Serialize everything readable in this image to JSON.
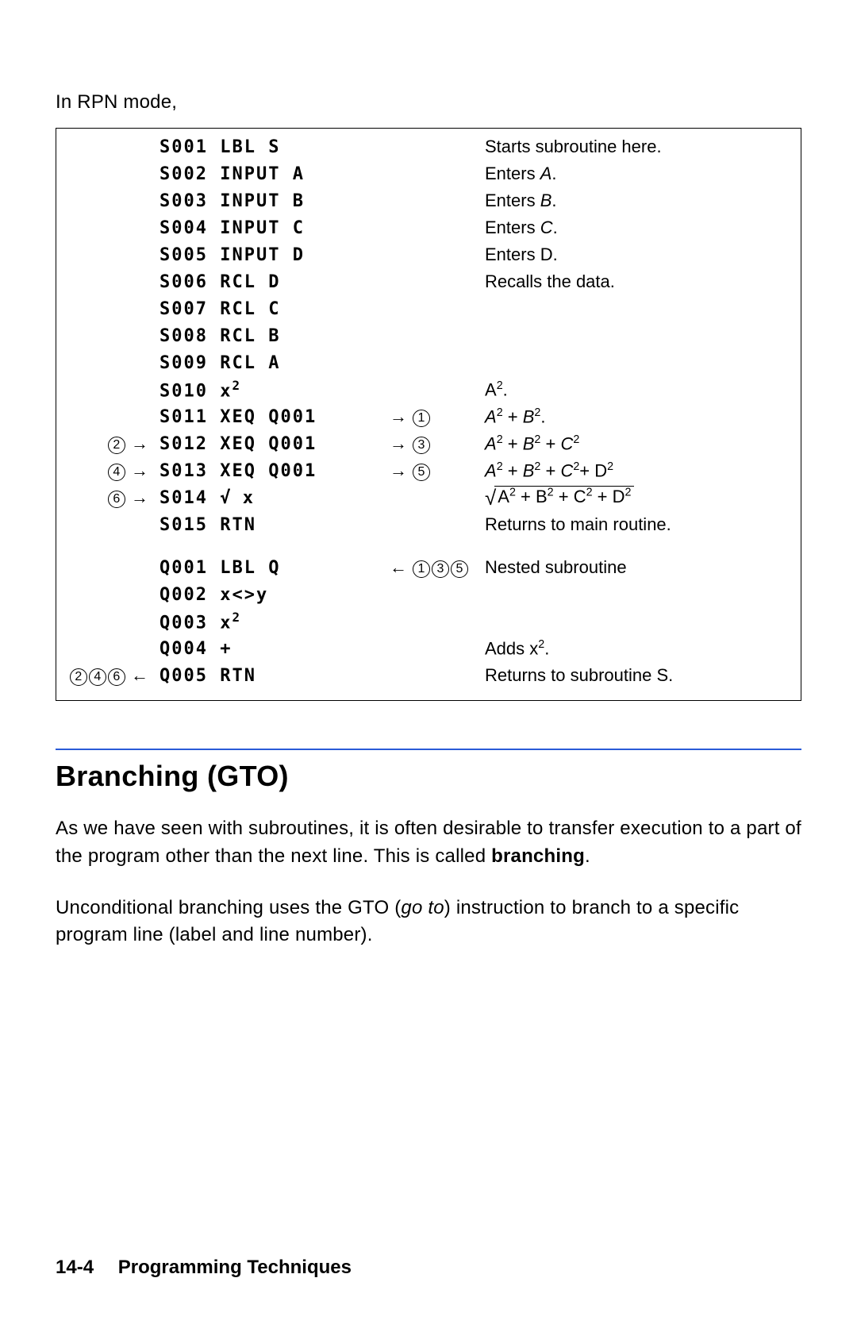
{
  "intro": "In RPN mode,",
  "program": {
    "rows": [
      {
        "left": "",
        "code": "S001 LBL S",
        "mid": "",
        "expl_html": "Starts subroutine here."
      },
      {
        "left": "",
        "code": "S002 INPUT A",
        "mid": "",
        "expl_html": "Enters <span class='ital'>A</span>."
      },
      {
        "left": "",
        "code": "S003 INPUT B",
        "mid": "",
        "expl_html": "Enters <span class='ital'>B</span>."
      },
      {
        "left": "",
        "code": "S004 INPUT C",
        "mid": "",
        "expl_html": "Enters <span class='ital'>C</span>."
      },
      {
        "left": "",
        "code": "S005 INPUT D",
        "mid": "",
        "expl_html": "Enters D."
      },
      {
        "left": "",
        "code": "S006 RCL D",
        "mid": "",
        "expl_html": "Recalls the data."
      },
      {
        "left": "",
        "code": "S007 RCL C",
        "mid": "",
        "expl_html": ""
      },
      {
        "left": "",
        "code": "S008 RCL B",
        "mid": "",
        "expl_html": ""
      },
      {
        "left": "",
        "code": "S009 RCL A",
        "mid": "",
        "expl_html": ""
      },
      {
        "left": "",
        "code_html": "S010 x<span class='x2code'>2</span>",
        "mid": "",
        "expl_html": "A<span class='sup'>2</span>."
      },
      {
        "left": "",
        "code": "S011 XEQ Q001",
        "mid_html": "<span class='arr'>→</span><span class='circ'>1</span>",
        "expl_html": "<span class='ital'>A</span><span class='sup'>2</span> + <span class='ital'>B</span><span class='sup'>2</span>."
      },
      {
        "left_html": "<span class='circ'>2</span> <span class='arr'>→</span>",
        "code": "S012 XEQ Q001",
        "mid_html": "<span class='arr'>→</span><span class='circ'>3</span>",
        "expl_html": "<span class='ital'>A</span><span class='sup'>2</span> + <span class='ital'>B</span><span class='sup'>2</span> + <span class='ital'>C</span><span class='sup'>2</span>"
      },
      {
        "left_html": "<span class='circ'>4</span> <span class='arr'>→</span>",
        "code": "S013 XEQ Q001",
        "mid_html": "<span class='arr'>→</span><span class='circ'>5</span>",
        "expl_html": "<span class='ital'>A</span><span class='sup'>2</span> + <span class='ital'>B</span><span class='sup'>2</span> + <span class='ital'>C</span><span class='sup'>2</span>+ D<span class='sup'>2</span>"
      },
      {
        "left_html": "<span class='circ'>6</span> <span class='arr'>→</span>",
        "code_html": "S014 √<span style='letter-spacing:0'>&#8202;</span>x",
        "mid": "",
        "expl_html": "<span class='radic'>√</span><span class='sqrt'>A<span class='sup'>2</span> + B<span class='sup'>2</span> + C<span class='sup'>2</span> + D<span class='sup'>2</span></span>"
      },
      {
        "left": "",
        "code": "S015 RTN",
        "mid": "",
        "expl_html": "Returns to main routine."
      },
      {
        "spacer": true
      },
      {
        "left": "",
        "code": "Q001 LBL Q",
        "mid_html": "<span class='arr'>←</span><span class='circ'>1</span><span class='circ'>3</span><span class='circ'>5</span>",
        "expl_html": "Nested subroutine"
      },
      {
        "left": "",
        "code_html": "Q002 x&lt;&gt;y",
        "mid": "",
        "expl_html": ""
      },
      {
        "left": "",
        "code_html": "Q003 x<span class='x2code'>2</span>",
        "mid": "",
        "expl_html": ""
      },
      {
        "left": "",
        "code": "Q004 +",
        "mid": "",
        "expl_html": "Adds x<span class='sup'>2</span>."
      },
      {
        "left_html": "<span class='circ'>2</span><span class='circ'>4</span><span class='circ'>6</span> <span class='arr'>←</span>",
        "code": "Q005 RTN",
        "mid": "",
        "expl_html": "Returns to subroutine S."
      }
    ]
  },
  "section_title": "Branching (GTO)",
  "para1_html": "As we have seen with subroutines, it is often desirable to transfer execution to a part of the program other than the next line. This is called <span class='bold'>branching</span>.",
  "para2_html": "Unconditional branching uses the GTO (<span class='ital'>go to</span>) instruction to branch to a specific program line (label and line number).",
  "footer": {
    "page": "14-4",
    "chapter": "Programming Techniques"
  },
  "colors": {
    "rule": "#2a5bd7",
    "text": "#000000",
    "bg": "#ffffff"
  }
}
